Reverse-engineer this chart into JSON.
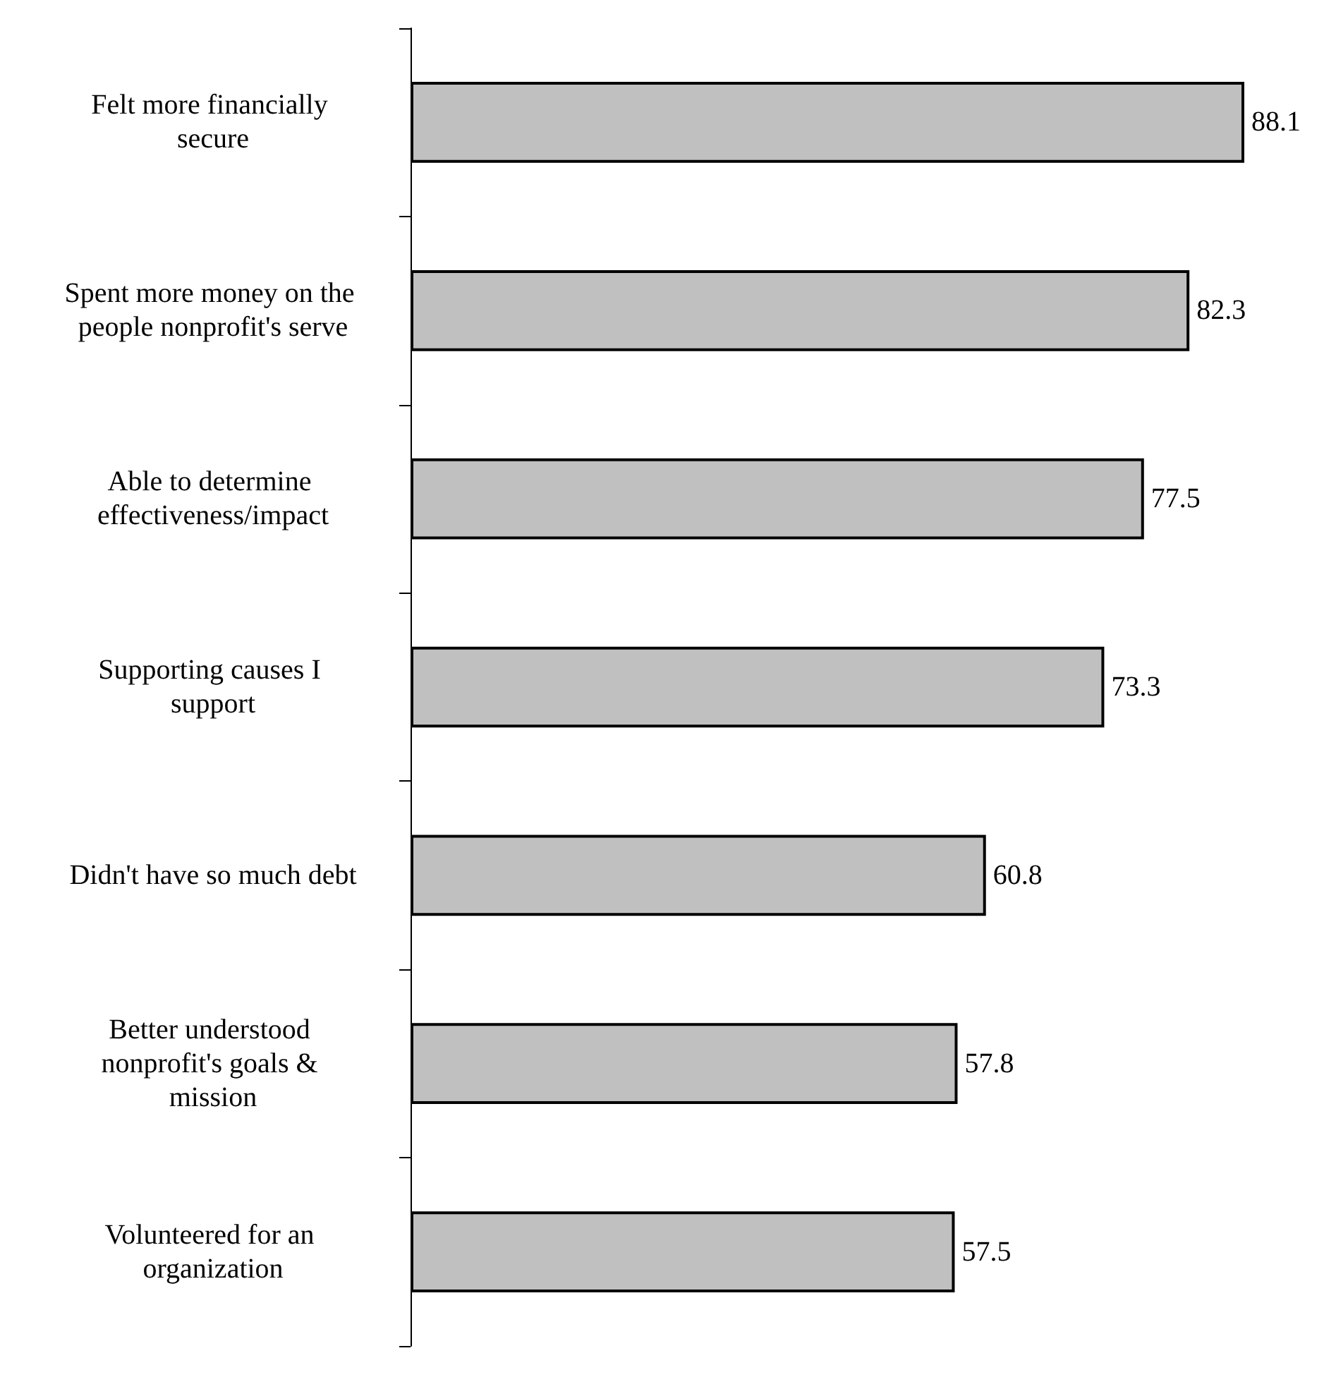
{
  "chart_data": {
    "type": "bar",
    "orientation": "horizontal",
    "categories": [
      "Felt more financially secure",
      "Spent more money on the people nonprofit's serve",
      "Able to determine effectiveness/impact",
      "Supporting causes I support",
      "Didn't have so much debt",
      "Better understood nonprofit's goals & mission",
      "Volunteered for an organization"
    ],
    "values": [
      88.1,
      82.3,
      77.5,
      73.3,
      60.8,
      57.8,
      57.5
    ],
    "color": "#c0c0c0",
    "data_labels": true
  }
}
